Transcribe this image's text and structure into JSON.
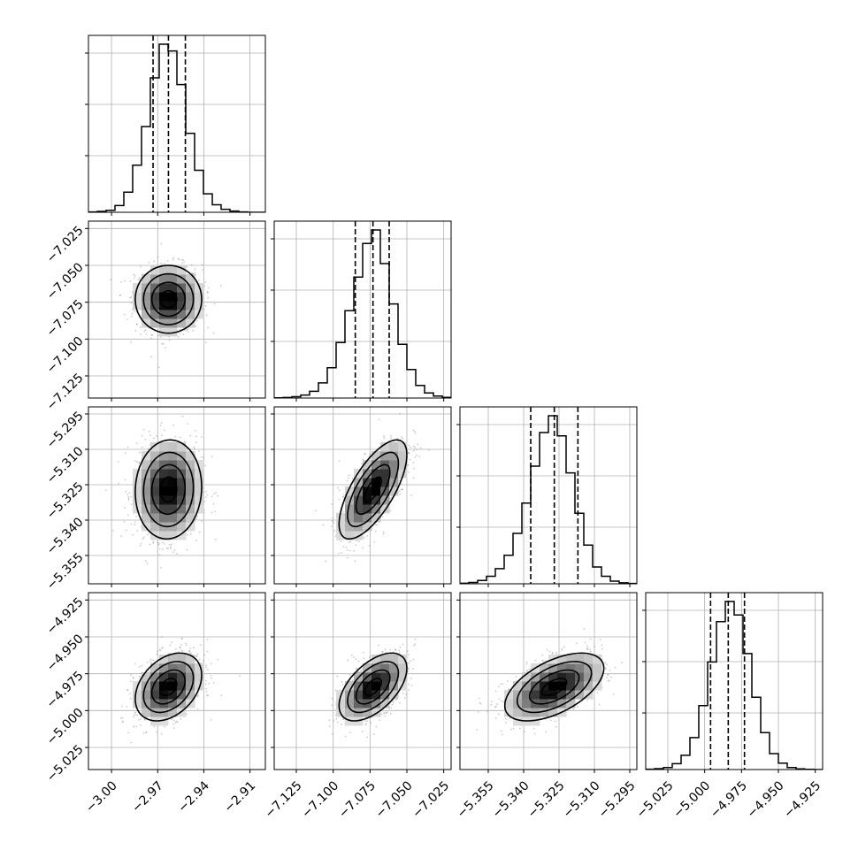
{
  "chart_data": {
    "type": "corner",
    "grid": true,
    "params": [
      {
        "range": [
          -3.015,
          -2.9
        ],
        "ticks": [
          -3.0,
          -2.97,
          -2.94,
          -2.91
        ],
        "tick_labels": [
          "−3.00",
          "−2.97",
          "−2.94",
          "−2.91"
        ],
        "quantiles": [
          -2.973,
          -2.963,
          -2.952
        ],
        "mean": -2.963,
        "sd": 0.0108
      },
      {
        "range": [
          -7.14,
          -7.02
        ],
        "ticks": [
          -7.125,
          -7.1,
          -7.075,
          -7.05,
          -7.025
        ],
        "tick_labels": [
          "−7.125",
          "−7.100",
          "−7.075",
          "−7.050",
          "−7.025"
        ],
        "quantiles": [
          -7.085,
          -7.073,
          -7.062
        ],
        "mean": -7.073,
        "sd": 0.0115
      },
      {
        "range": [
          -5.367,
          -5.292
        ],
        "ticks": [
          -5.355,
          -5.34,
          -5.325,
          -5.31,
          -5.295
        ],
        "tick_labels": [
          "−5.355",
          "−5.340",
          "−5.325",
          "−5.310",
          "−5.295"
        ],
        "quantiles": [
          -5.337,
          -5.327,
          -5.317
        ],
        "mean": -5.327,
        "sd": 0.0105
      },
      {
        "range": [
          -5.04,
          -4.92
        ],
        "ticks": [
          -5.025,
          -5.0,
          -4.975,
          -4.95,
          -4.925
        ],
        "tick_labels": [
          "−5.025",
          "−5.000",
          "−4.975",
          "−4.950",
          "−4.925"
        ],
        "quantiles": [
          -4.996,
          -4.984,
          -4.973
        ],
        "mean": -4.984,
        "sd": 0.0115
      }
    ],
    "correlations": [
      [
        1,
        0,
        0.05,
        0.35
      ],
      [
        0,
        1,
        0.7,
        0.55
      ],
      [
        0.05,
        0.7,
        1,
        0.55
      ],
      [
        0.35,
        0.55,
        0.55,
        1
      ]
    ],
    "histograms": [
      {
        "bins": 20,
        "counts": [
          2,
          5,
          12,
          40,
          120,
          280,
          510,
          800,
          1000,
          960,
          760,
          470,
          250,
          110,
          45,
          18,
          7,
          2,
          0,
          0
        ]
      },
      {
        "bins": 20,
        "counts": [
          1,
          3,
          8,
          18,
          40,
          90,
          180,
          330,
          520,
          720,
          920,
          1000,
          800,
          560,
          320,
          170,
          75,
          30,
          12,
          4
        ]
      },
      {
        "bins": 20,
        "counts": [
          3,
          8,
          20,
          45,
          90,
          170,
          300,
          480,
          700,
          900,
          1000,
          880,
          660,
          420,
          230,
          100,
          45,
          16,
          6,
          2
        ]
      },
      {
        "bins": 20,
        "counts": [
          2,
          5,
          12,
          35,
          85,
          190,
          380,
          640,
          880,
          1000,
          920,
          690,
          430,
          220,
          95,
          38,
          12,
          4,
          1,
          0
        ]
      }
    ],
    "contour_levels": [
      "0.5σ",
      "1σ",
      "1.5σ",
      "2σ"
    ],
    "colors": {
      "line": "#000000",
      "grid": "#b0b0b0",
      "points": "#8c8c8c",
      "background": "#ffffff"
    }
  }
}
